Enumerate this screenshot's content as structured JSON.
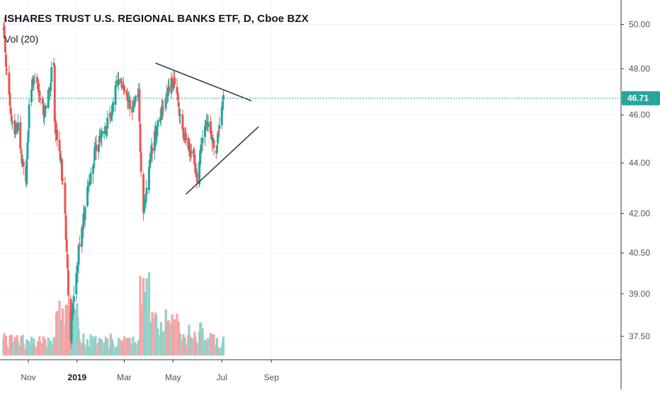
{
  "header": {
    "symbol_line": "ISHARES TRUST U.S. REGIONAL BANKS ETF, D, Cboe BZX",
    "volume_label": "Vol (20)"
  },
  "chart_data": {
    "type": "candlestick",
    "title": "ISHARES TRUST U.S. REGIONAL BANKS ETF, D, Cboe BZX",
    "y_axis": {
      "ticks": [
        "50.00",
        "48.00",
        "46.00",
        "44.00",
        "42.00",
        "40.50",
        "39.00",
        "37.50"
      ],
      "ylim": [
        36.9,
        50.8
      ],
      "scale": "log"
    },
    "x_axis": {
      "ticks": [
        {
          "label": "Nov",
          "date": "2018-11-01",
          "bold": false
        },
        {
          "label": "2019",
          "date": "2019-01-01",
          "bold": true
        },
        {
          "label": "Mar",
          "date": "2019-03-01",
          "bold": false
        },
        {
          "label": "May",
          "date": "2019-05-01",
          "bold": false
        },
        {
          "label": "Jul",
          "date": "2019-07-01",
          "bold": false
        },
        {
          "label": "Sep",
          "date": "2019-09-01",
          "bold": false
        }
      ]
    },
    "last_price": {
      "value": 46.71,
      "label": "46.71"
    },
    "colors": {
      "up": "#26a69a",
      "down": "#ef5350",
      "up_volume": "#8fd1c9",
      "down_volume": "#f6a3a1",
      "price_line": "#26a69a"
    },
    "trendlines": [
      {
        "name": "upper",
        "points": [
          [
            "2019-04-09",
            48.25
          ],
          [
            "2019-08-07",
            46.6
          ]
        ]
      },
      {
        "name": "lower",
        "points": [
          [
            "2019-05-17",
            42.75
          ],
          [
            "2019-08-16",
            45.5
          ]
        ]
      }
    ],
    "price_path": [
      [
        "2018-10-01",
        49.8
      ],
      [
        "2018-10-03",
        48.9
      ],
      [
        "2018-10-05",
        47.8
      ],
      [
        "2018-10-10",
        45.9
      ],
      [
        "2018-10-15",
        45.3
      ],
      [
        "2018-10-19",
        45.6
      ],
      [
        "2018-10-24",
        44.0
      ],
      [
        "2018-10-29",
        43.4
      ],
      [
        "2018-11-02",
        46.2
      ],
      [
        "2018-11-07",
        47.6
      ],
      [
        "2018-11-12",
        47.2
      ],
      [
        "2018-11-16",
        46.6
      ],
      [
        "2018-11-20",
        46.2
      ],
      [
        "2018-11-26",
        46.8
      ],
      [
        "2018-11-30",
        47.8
      ],
      [
        "2018-12-03",
        48.1
      ],
      [
        "2018-12-04",
        45.6
      ],
      [
        "2018-12-07",
        44.8
      ],
      [
        "2018-12-12",
        43.9
      ],
      [
        "2018-12-17",
        42.0
      ],
      [
        "2018-12-20",
        39.8
      ],
      [
        "2018-12-24",
        37.4
      ],
      [
        "2018-12-26",
        38.6
      ],
      [
        "2018-12-31",
        39.7
      ],
      [
        "2019-01-04",
        40.8
      ],
      [
        "2019-01-10",
        42.0
      ],
      [
        "2019-01-17",
        43.4
      ],
      [
        "2019-01-24",
        44.6
      ],
      [
        "2019-01-31",
        45.2
      ],
      [
        "2019-02-07",
        45.5
      ],
      [
        "2019-02-14",
        46.3
      ],
      [
        "2019-02-22",
        47.7
      ],
      [
        "2019-02-28",
        47.2
      ],
      [
        "2019-03-06",
        46.6
      ],
      [
        "2019-03-11",
        46.2
      ],
      [
        "2019-03-15",
        47.0
      ],
      [
        "2019-03-19",
        46.9
      ],
      [
        "2019-03-22",
        43.5
      ],
      [
        "2019-03-25",
        42.2
      ],
      [
        "2019-03-29",
        43.0
      ],
      [
        "2019-04-03",
        44.4
      ],
      [
        "2019-04-09",
        45.2
      ],
      [
        "2019-04-15",
        46.0
      ],
      [
        "2019-04-22",
        46.6
      ],
      [
        "2019-04-29",
        47.6
      ],
      [
        "2019-05-03",
        47.3
      ],
      [
        "2019-05-08",
        46.3
      ],
      [
        "2019-05-13",
        45.2
      ],
      [
        "2019-05-17",
        44.8
      ],
      [
        "2019-05-22",
        44.5
      ],
      [
        "2019-05-28",
        44.0
      ],
      [
        "2019-05-31",
        43.4
      ],
      [
        "2019-06-04",
        44.6
      ],
      [
        "2019-06-10",
        45.3
      ],
      [
        "2019-06-14",
        45.6
      ],
      [
        "2019-06-19",
        45.0
      ],
      [
        "2019-06-24",
        44.4
      ],
      [
        "2019-06-28",
        45.6
      ],
      [
        "2019-07-03",
        46.7
      ]
    ]
  }
}
